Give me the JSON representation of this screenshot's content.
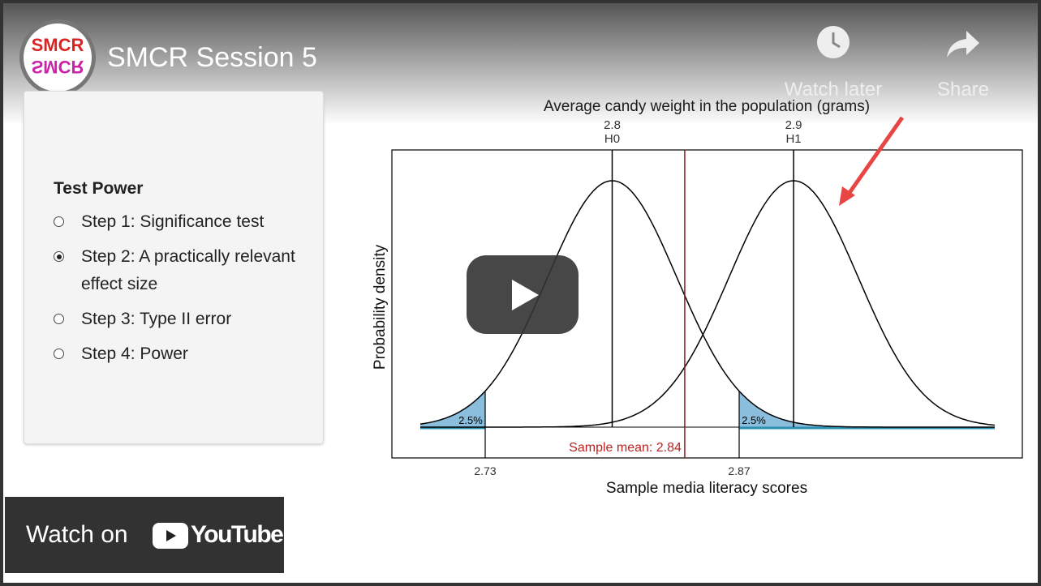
{
  "header": {
    "title": "SMCR Session 5",
    "logo": "SMCR"
  },
  "actions": [
    {
      "label": "Watch later"
    },
    {
      "label": "Share"
    }
  ],
  "sidebar": {
    "heading": "Test Power",
    "steps": [
      {
        "label": "Step 1: Significance test",
        "selected": false
      },
      {
        "label": "Step 2: A practically relevant effect size",
        "selected": true
      },
      {
        "label": "Step 3: Type II error",
        "selected": false
      },
      {
        "label": "Step 4: Power",
        "selected": false
      }
    ]
  },
  "plot": {
    "top_axis_label": "Average candy weight in the population (grams)",
    "h0": {
      "value": 2.8,
      "label": "H0"
    },
    "h1": {
      "value": 2.9,
      "label": "H1"
    },
    "critical": [
      2.73,
      2.87
    ],
    "tails": [
      {
        "value": 2.5,
        "label": "2.5%"
      },
      {
        "value": 2.5,
        "label": "2.5%"
      }
    ],
    "sample_mean": 2.84,
    "sample_mean_label": "Sample mean: 2.84",
    "y_label": "Probability density",
    "x_label": "Sample media literacy scores"
  },
  "youtube": {
    "watch_on": "Watch on",
    "brand": "YouTube"
  }
}
